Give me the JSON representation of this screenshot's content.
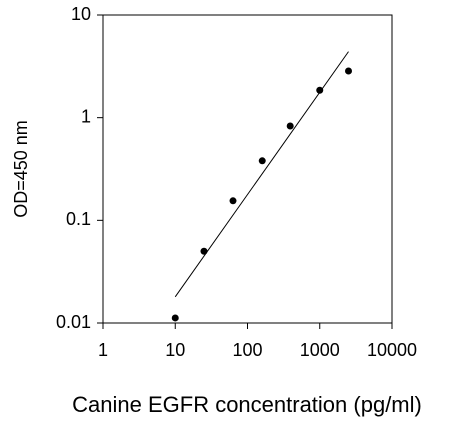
{
  "chart_data": {
    "type": "scatter",
    "x_label": "Canine EGFR concentration (pg/ml)",
    "y_label": "OD=450 nm",
    "series": [
      {
        "x": [
          10,
          25,
          63,
          160,
          390,
          1000,
          2500
        ],
        "values": [
          0.0112,
          0.05,
          0.155,
          0.38,
          0.83,
          1.85,
          2.85
        ],
        "color": "#000000"
      }
    ],
    "fit": {
      "x": [
        10,
        2500
      ],
      "values": [
        0.018,
        4.4
      ],
      "color": "#000000"
    },
    "xlim": [
      1,
      10000
    ],
    "ylim": [
      0.01,
      10
    ],
    "xticks": [
      1,
      10,
      100,
      1000,
      10000
    ],
    "yticks": [
      0.01,
      0.1,
      1,
      10
    ],
    "xscale": "log",
    "yscale": "log",
    "grid": false
  }
}
